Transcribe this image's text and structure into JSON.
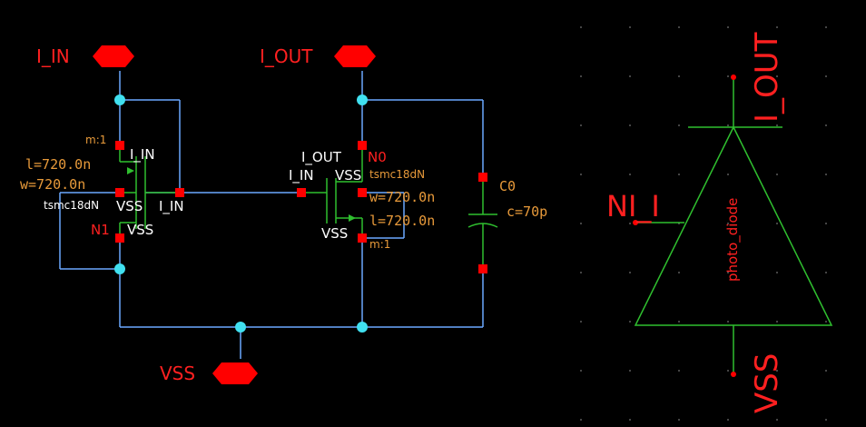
{
  "colors": {
    "background": "#000000",
    "wire": "#6aa8ff",
    "device": "#2fbf2f",
    "pin": "#ff0000",
    "dot": "#40e0f0",
    "property": "#e89a3a",
    "label_red": "#ff2020",
    "net_white": "#ffffff"
  },
  "pins": {
    "i_in": "I_IN",
    "i_out": "I_OUT",
    "vss": "VSS"
  },
  "m1": {
    "m": "m:1",
    "gate_net": "I_IN",
    "l": "l=720.0n",
    "w": "w=720.0n",
    "model": "tsmc18dN",
    "bulk_net": "VSS",
    "drain_net": "I_IN",
    "name": "N1",
    "source_net": "VSS"
  },
  "m0": {
    "drain_net": "I_OUT",
    "name": "N0",
    "gate_net": "I_IN",
    "bulk_net": "VSS",
    "model": "tsmc18dN",
    "w": "w=720.0n",
    "l": "l=720.0n",
    "source_net": "VSS",
    "m": "m:1"
  },
  "c0": {
    "name": "C0",
    "c": "c=70p"
  },
  "symbol": {
    "label": "photo_diode",
    "top_pin": "I_OUT",
    "left_pin": "NI_I",
    "bottom_pin": "VSS"
  }
}
